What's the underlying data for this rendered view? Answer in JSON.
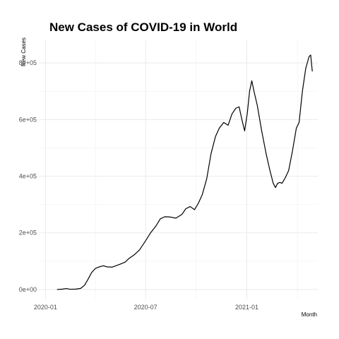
{
  "chart_data": {
    "type": "line",
    "title": "New Cases of COVID-19 in World",
    "xlabel": "Month",
    "ylabel": "New Cases",
    "x_ticks": [
      {
        "label": "2020-01",
        "date": "2020-01-01"
      },
      {
        "label": "2020-07",
        "date": "2020-07-01"
      },
      {
        "label": "2021-01",
        "date": "2021-01-01"
      }
    ],
    "y_ticks": [
      {
        "label": "0e+00",
        "value": 0
      },
      {
        "label": "2e+05",
        "value": 200000
      },
      {
        "label": "4e+05",
        "value": 400000
      },
      {
        "label": "6e+05",
        "value": 600000
      },
      {
        "label": "8e+05",
        "value": 800000
      }
    ],
    "xlim": [
      "2019-12-20",
      "2021-05-10"
    ],
    "ylim": [
      -35000,
      880000
    ],
    "grid": true,
    "legend": "none",
    "series": [
      {
        "color": "#000000",
        "points": [
          [
            "2020-01-22",
            0
          ],
          [
            "2020-02-01",
            1500
          ],
          [
            "2020-02-08",
            3500
          ],
          [
            "2020-02-15",
            1000
          ],
          [
            "2020-02-25",
            1500
          ],
          [
            "2020-03-05",
            4000
          ],
          [
            "2020-03-12",
            15000
          ],
          [
            "2020-03-18",
            35000
          ],
          [
            "2020-03-25",
            60000
          ],
          [
            "2020-04-01",
            75000
          ],
          [
            "2020-04-08",
            80000
          ],
          [
            "2020-04-15",
            84000
          ],
          [
            "2020-04-22",
            80000
          ],
          [
            "2020-05-01",
            79000
          ],
          [
            "2020-05-08",
            84000
          ],
          [
            "2020-05-15",
            89000
          ],
          [
            "2020-05-25",
            97000
          ],
          [
            "2020-06-01",
            110000
          ],
          [
            "2020-06-10",
            122000
          ],
          [
            "2020-06-20",
            140000
          ],
          [
            "2020-07-01",
            172000
          ],
          [
            "2020-07-10",
            200000
          ],
          [
            "2020-07-20",
            225000
          ],
          [
            "2020-07-28",
            250000
          ],
          [
            "2020-08-05",
            257000
          ],
          [
            "2020-08-15",
            256000
          ],
          [
            "2020-08-25",
            252000
          ],
          [
            "2020-09-05",
            265000
          ],
          [
            "2020-09-12",
            285000
          ],
          [
            "2020-09-20",
            293000
          ],
          [
            "2020-09-28",
            282000
          ],
          [
            "2020-10-05",
            305000
          ],
          [
            "2020-10-12",
            335000
          ],
          [
            "2020-10-20",
            390000
          ],
          [
            "2020-10-28",
            480000
          ],
          [
            "2020-11-05",
            540000
          ],
          [
            "2020-11-12",
            570000
          ],
          [
            "2020-11-20",
            590000
          ],
          [
            "2020-11-28",
            580000
          ],
          [
            "2020-12-05",
            620000
          ],
          [
            "2020-12-12",
            640000
          ],
          [
            "2020-12-18",
            645000
          ],
          [
            "2020-12-23",
            600000
          ],
          [
            "2020-12-28",
            560000
          ],
          [
            "2021-01-02",
            625000
          ],
          [
            "2021-01-06",
            700000
          ],
          [
            "2021-01-10",
            737000
          ],
          [
            "2021-01-14",
            700000
          ],
          [
            "2021-01-20",
            650000
          ],
          [
            "2021-01-28",
            560000
          ],
          [
            "2021-02-05",
            480000
          ],
          [
            "2021-02-12",
            420000
          ],
          [
            "2021-02-18",
            375000
          ],
          [
            "2021-02-22",
            360000
          ],
          [
            "2021-02-26",
            375000
          ],
          [
            "2021-03-02",
            378000
          ],
          [
            "2021-03-06",
            375000
          ],
          [
            "2021-03-12",
            395000
          ],
          [
            "2021-03-18",
            420000
          ],
          [
            "2021-03-25",
            490000
          ],
          [
            "2021-04-01",
            570000
          ],
          [
            "2021-04-06",
            590000
          ],
          [
            "2021-04-12",
            700000
          ],
          [
            "2021-04-18",
            780000
          ],
          [
            "2021-04-24",
            822000
          ],
          [
            "2021-04-27",
            828000
          ],
          [
            "2021-04-30",
            770000
          ]
        ]
      }
    ]
  }
}
